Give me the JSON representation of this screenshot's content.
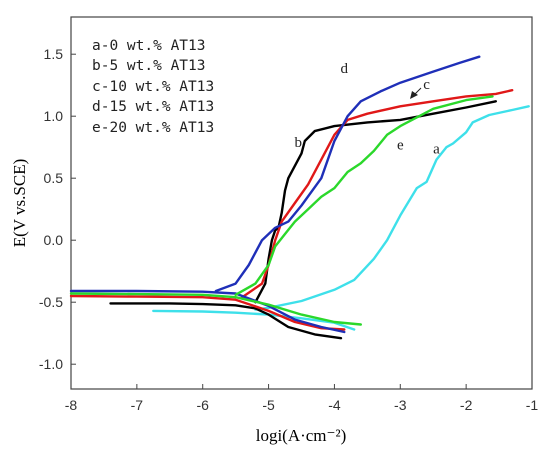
{
  "chart_data": {
    "type": "line",
    "xlabel": "logi(A·cm⁻²)",
    "ylabel": "E(V vs.SCE)",
    "xlim": [
      -8,
      -1
    ],
    "ylim": [
      -1.2,
      1.8
    ],
    "x_ticks": [
      "-8",
      "-7",
      "-6",
      "-5",
      "-4",
      "-3",
      "-2",
      "-1"
    ],
    "y_ticks": [
      "1.5",
      "1.0",
      "0.5",
      "0.0",
      "-0.5",
      "-1.0"
    ],
    "x_tick_values": [
      -8,
      -7,
      -6,
      -5,
      -4,
      -3,
      -2,
      -1
    ],
    "y_tick_values": [
      1.5,
      1.0,
      0.5,
      0.0,
      -0.5,
      -1.0
    ],
    "legend": [
      "a-0 wt.% AT13",
      "b-5 wt.% AT13",
      "c-10 wt.% AT13",
      "d-15 wt.% AT13",
      "e-20 wt.% AT13"
    ],
    "legend_position": "top-left",
    "series": [
      {
        "label": "a",
        "color": "#3ee0ea",
        "cathodic": [
          [
            -6.75,
            -0.57
          ],
          [
            -6.0,
            -0.575
          ],
          [
            -5.5,
            -0.585
          ],
          [
            -5.0,
            -0.6
          ],
          [
            -4.5,
            -0.63
          ],
          [
            -4.0,
            -0.665
          ],
          [
            -3.7,
            -0.72
          ]
        ],
        "anodic": [
          [
            -5.2,
            -0.56
          ],
          [
            -5.0,
            -0.545
          ],
          [
            -4.5,
            -0.49
          ],
          [
            -4.0,
            -0.4
          ],
          [
            -3.7,
            -0.32
          ],
          [
            -3.4,
            -0.15
          ],
          [
            -3.2,
            0.0
          ],
          [
            -3.0,
            0.2
          ],
          [
            -2.75,
            0.42
          ],
          [
            -2.6,
            0.47
          ],
          [
            -2.45,
            0.65
          ],
          [
            -2.3,
            0.75
          ],
          [
            -2.2,
            0.78
          ],
          [
            -2.0,
            0.87
          ],
          [
            -1.9,
            0.95
          ],
          [
            -1.65,
            1.01
          ],
          [
            -1.3,
            1.05
          ],
          [
            -1.05,
            1.08
          ]
        ]
      },
      {
        "label": "b",
        "color": "#000000",
        "cathodic": [
          [
            -7.4,
            -0.51
          ],
          [
            -6.5,
            -0.51
          ],
          [
            -6.0,
            -0.515
          ],
          [
            -5.5,
            -0.525
          ],
          [
            -5.2,
            -0.55
          ],
          [
            -5.0,
            -0.6
          ],
          [
            -4.7,
            -0.7
          ],
          [
            -4.3,
            -0.76
          ],
          [
            -3.9,
            -0.79
          ]
        ],
        "anodic": [
          [
            -5.2,
            -0.5
          ],
          [
            -5.05,
            -0.35
          ],
          [
            -5.0,
            -0.15
          ],
          [
            -4.95,
            0.0
          ],
          [
            -4.9,
            0.08
          ],
          [
            -4.85,
            0.1
          ],
          [
            -4.8,
            0.22
          ],
          [
            -4.75,
            0.4
          ],
          [
            -4.7,
            0.5
          ],
          [
            -4.6,
            0.6
          ],
          [
            -4.5,
            0.7
          ],
          [
            -4.45,
            0.8
          ],
          [
            -4.3,
            0.88
          ],
          [
            -4.0,
            0.92
          ],
          [
            -3.5,
            0.95
          ],
          [
            -3.0,
            0.97
          ],
          [
            -2.5,
            1.02
          ],
          [
            -2.0,
            1.07
          ],
          [
            -1.55,
            1.12
          ]
        ]
      },
      {
        "label": "c",
        "color": "#e01818",
        "cathodic": [
          [
            -8.0,
            -0.45
          ],
          [
            -7.0,
            -0.455
          ],
          [
            -6.0,
            -0.46
          ],
          [
            -5.5,
            -0.48
          ],
          [
            -5.0,
            -0.57
          ],
          [
            -4.6,
            -0.66
          ],
          [
            -4.2,
            -0.71
          ],
          [
            -3.85,
            -0.72
          ]
        ],
        "anodic": [
          [
            -5.4,
            -0.46
          ],
          [
            -5.1,
            -0.35
          ],
          [
            -5.0,
            -0.2
          ],
          [
            -4.9,
            0.0
          ],
          [
            -4.8,
            0.15
          ],
          [
            -4.6,
            0.3
          ],
          [
            -4.4,
            0.45
          ],
          [
            -4.2,
            0.65
          ],
          [
            -4.0,
            0.85
          ],
          [
            -3.8,
            0.97
          ],
          [
            -3.5,
            1.02
          ],
          [
            -3.0,
            1.08
          ],
          [
            -2.5,
            1.12
          ],
          [
            -2.0,
            1.16
          ],
          [
            -1.55,
            1.18
          ],
          [
            -1.3,
            1.21
          ]
        ]
      },
      {
        "label": "d",
        "color": "#1f2fb8",
        "cathodic": [
          [
            -8.0,
            -0.41
          ],
          [
            -7.0,
            -0.41
          ],
          [
            -6.0,
            -0.415
          ],
          [
            -5.5,
            -0.43
          ],
          [
            -5.0,
            -0.53
          ],
          [
            -4.6,
            -0.64
          ],
          [
            -4.2,
            -0.7
          ],
          [
            -3.85,
            -0.74
          ]
        ],
        "anodic": [
          [
            -5.8,
            -0.41
          ],
          [
            -5.5,
            -0.35
          ],
          [
            -5.3,
            -0.2
          ],
          [
            -5.1,
            0.0
          ],
          [
            -4.9,
            0.1
          ],
          [
            -4.7,
            0.15
          ],
          [
            -4.5,
            0.28
          ],
          [
            -4.2,
            0.5
          ],
          [
            -4.0,
            0.8
          ],
          [
            -3.8,
            1.0
          ],
          [
            -3.6,
            1.12
          ],
          [
            -3.3,
            1.2
          ],
          [
            -3.0,
            1.27
          ],
          [
            -2.5,
            1.36
          ],
          [
            -2.1,
            1.43
          ],
          [
            -1.8,
            1.48
          ]
        ]
      },
      {
        "label": "e",
        "color": "#2bd82b",
        "cathodic": [
          [
            -8.0,
            -0.43
          ],
          [
            -7.0,
            -0.435
          ],
          [
            -6.0,
            -0.44
          ],
          [
            -5.5,
            -0.46
          ],
          [
            -5.0,
            -0.52
          ],
          [
            -4.5,
            -0.6
          ],
          [
            -4.0,
            -0.66
          ],
          [
            -3.6,
            -0.68
          ]
        ],
        "anodic": [
          [
            -5.5,
            -0.44
          ],
          [
            -5.2,
            -0.35
          ],
          [
            -5.0,
            -0.2
          ],
          [
            -4.9,
            -0.05
          ],
          [
            -4.75,
            0.05
          ],
          [
            -4.6,
            0.15
          ],
          [
            -4.4,
            0.25
          ],
          [
            -4.2,
            0.35
          ],
          [
            -4.0,
            0.42
          ],
          [
            -3.8,
            0.55
          ],
          [
            -3.6,
            0.62
          ],
          [
            -3.4,
            0.72
          ],
          [
            -3.2,
            0.85
          ],
          [
            -3.0,
            0.92
          ],
          [
            -2.5,
            1.06
          ],
          [
            -2.0,
            1.13
          ],
          [
            -1.6,
            1.16
          ]
        ]
      }
    ],
    "curve_labels": [
      {
        "text": "a",
        "x": -2.45,
        "y": 0.7
      },
      {
        "text": "b",
        "x": -4.55,
        "y": 0.75
      },
      {
        "text": "c",
        "x": -2.6,
        "y": 1.22
      },
      {
        "text": "d",
        "x": -3.85,
        "y": 1.35
      },
      {
        "text": "e",
        "x": -3.0,
        "y": 0.73
      }
    ]
  }
}
